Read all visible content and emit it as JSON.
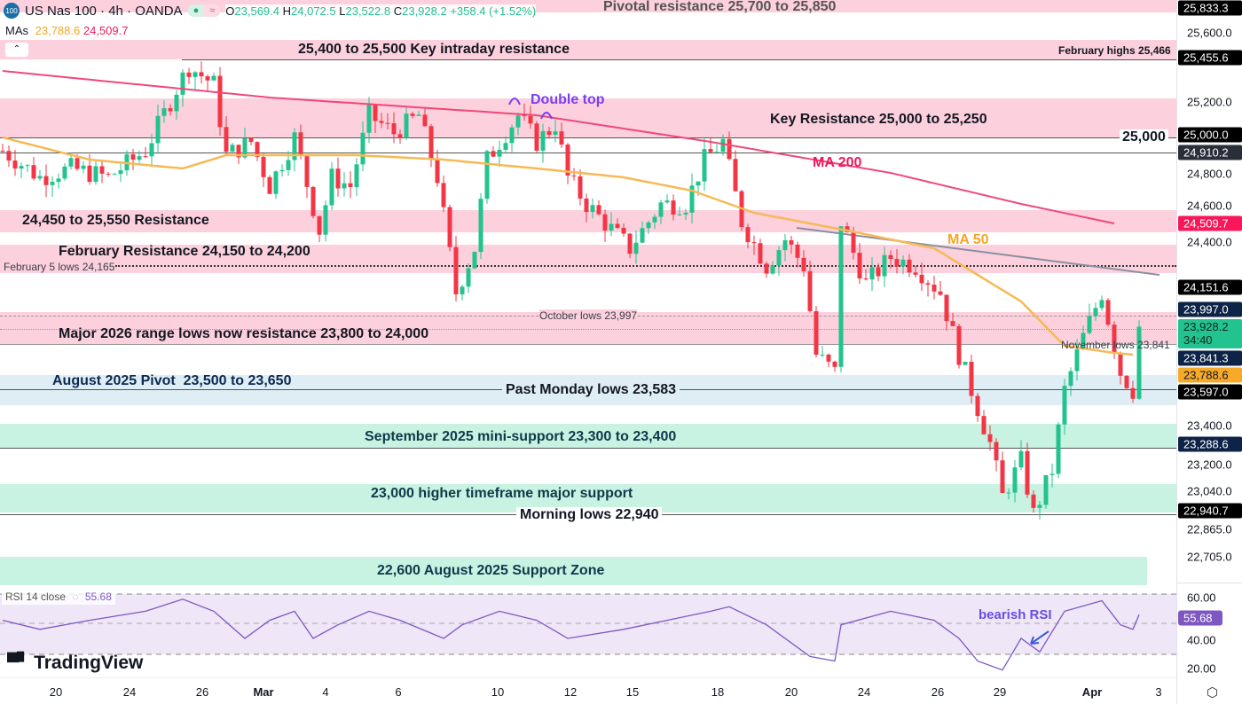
{
  "header": {
    "symbol_badge": "100",
    "title": "US Nas 100 · 4h · OANDA",
    "open_label": "O",
    "open": "23,569.4",
    "high_label": "H",
    "high": "24,072.5",
    "low_label": "L",
    "low": "23,522.8",
    "close_label": "C",
    "close": "23,928.2",
    "change": "+358.4 (+1.52%)",
    "mas_label": "MAs",
    "ma50": "23,788.6",
    "ma200": "24,509.7"
  },
  "annotations": {
    "pivotal": "Pivotal resistance 25,700 to 25,850",
    "key_intraday": "25,400 to 25,500 Key intraday resistance",
    "feb_highs": "February highs 25,466",
    "double_top": "Double top",
    "key_res": "Key Resistance 25,000 to 25,250",
    "level_25000": "25,000",
    "ma200": "MA 200",
    "res_24450": "24,450 to 25,550 Resistance",
    "ma50": "MA 50",
    "feb_res": "February Resistance 24,150 to 24,200",
    "feb5": "February 5 lows 24,165",
    "oct_lows": "October lows 23,997",
    "major2026": "Major 2026 range lows now resistance 23,800 to 24,000",
    "nov_lows": "November lows 23,841",
    "aug_pivot": "August 2025 Pivot  23,500 to 23,650",
    "past_monday": "Past Monday lows 23,583",
    "sep_support": "September 2025 mini-support 23,300 to 23,400",
    "support_23000": "23,000 higher timeframe major support",
    "morning_lows": "Morning lows 22,940",
    "aug_support": "22,600 August 2025 Support Zone",
    "bearish_rsi": "bearish RSI"
  },
  "rsi": {
    "label": "RSI 14 close",
    "value": "55.68"
  },
  "logo": "TradingView",
  "price_axis": {
    "ticks": [
      "25,600.0",
      "25,200.0",
      "24,800.0",
      "24,600.0",
      "24,400.0",
      "23,400.0",
      "23,200.0",
      "23,040.0",
      "22,865.0",
      "22,705.0"
    ],
    "badges": {
      "pivotal": "25,833.3",
      "feb_high": "25,455.6",
      "k25000": "25,000.0",
      "k24910": "24,910.2",
      "ma200": "24,509.7",
      "feb5": "24,151.6",
      "oct": "23,997.0",
      "last": "23,928.2",
      "countdown": "34:40",
      "nov": "23,841.3",
      "ma50": "23,788.6",
      "monday": "23,597.0",
      "sep": "23,288.6",
      "morning": "22,940.7"
    },
    "rsi_ticks": [
      "60.00",
      "40.00",
      "20.00"
    ]
  },
  "time_axis": [
    "20",
    "24",
    "26",
    "Mar",
    "4",
    "6",
    "10",
    "12",
    "15",
    "18",
    "20",
    "24",
    "26",
    "29",
    "Apr",
    "3"
  ],
  "colors": {
    "up": "#22c38e",
    "down": "#f23645",
    "ma50": "#f7b955",
    "ma200": "#f0487a",
    "rsi": "#7e57c2"
  },
  "chart_data": {
    "type": "candlestick",
    "title": "US Nas 100 · 4h · OANDA",
    "ylim": [
      22600,
      25900
    ],
    "close_path": [
      [
        0,
        24920
      ],
      [
        6,
        24770
      ],
      [
        11,
        24820
      ],
      [
        17,
        24770
      ],
      [
        23,
        24920
      ],
      [
        28,
        25270
      ],
      [
        30,
        25395
      ],
      [
        34,
        25295
      ],
      [
        36,
        24895
      ],
      [
        40,
        24970
      ],
      [
        43,
        24720
      ],
      [
        47,
        24995
      ],
      [
        51,
        24470
      ],
      [
        53,
        24770
      ],
      [
        56,
        24720
      ],
      [
        59,
        25120
      ],
      [
        63,
        25020
      ],
      [
        67,
        25120
      ],
      [
        70,
        24770
      ],
      [
        73,
        24120
      ],
      [
        76,
        24370
      ],
      [
        78,
        24870
      ],
      [
        83,
        25120
      ],
      [
        86,
        24970
      ],
      [
        89,
        25070
      ],
      [
        91,
        24770
      ],
      [
        94,
        24620
      ],
      [
        101,
        24370
      ],
      [
        106,
        24620
      ],
      [
        110,
        24620
      ],
      [
        113,
        24870
      ],
      [
        116,
        24970
      ],
      [
        119,
        24520
      ],
      [
        123,
        24270
      ],
      [
        126,
        24420
      ],
      [
        129,
        24270
      ],
      [
        131,
        23770
      ],
      [
        134,
        23670
      ],
      [
        135,
        24520
      ],
      [
        139,
        24170
      ],
      [
        143,
        24320
      ],
      [
        147,
        24270
      ],
      [
        151,
        24120
      ],
      [
        154,
        23770
      ],
      [
        159,
        23270
      ],
      [
        161,
        22970
      ],
      [
        164,
        23170
      ],
      [
        166,
        22870
      ],
      [
        169,
        23120
      ],
      [
        171,
        23570
      ],
      [
        174,
        23870
      ],
      [
        177,
        24120
      ],
      [
        180,
        23670
      ],
      [
        182,
        23570
      ],
      [
        183,
        23928
      ]
    ],
    "ma50": [
      [
        0,
        24995
      ],
      [
        14,
        24870
      ],
      [
        29,
        24820
      ],
      [
        36,
        24895
      ],
      [
        57,
        24895
      ],
      [
        71,
        24870
      ],
      [
        86,
        24820
      ],
      [
        100,
        24770
      ],
      [
        111,
        24695
      ],
      [
        121,
        24570
      ],
      [
        136,
        24470
      ],
      [
        150,
        24370
      ],
      [
        164,
        24070
      ],
      [
        171,
        23820
      ],
      [
        179,
        23780
      ],
      [
        182,
        23770
      ]
    ],
    "ma200": [
      [
        0,
        25370
      ],
      [
        43,
        25220
      ],
      [
        86,
        25120
      ],
      [
        114,
        24970
      ],
      [
        143,
        24795
      ],
      [
        164,
        24620
      ],
      [
        179,
        24510
      ]
    ],
    "rsi_path": [
      [
        0,
        52
      ],
      [
        6,
        46
      ],
      [
        14,
        52
      ],
      [
        23,
        58
      ],
      [
        29,
        66
      ],
      [
        34,
        58
      ],
      [
        39,
        40
      ],
      [
        43,
        52
      ],
      [
        47,
        58
      ],
      [
        50,
        40
      ],
      [
        54,
        49
      ],
      [
        59,
        58
      ],
      [
        64,
        52
      ],
      [
        71,
        40
      ],
      [
        74,
        49
      ],
      [
        80,
        58
      ],
      [
        86,
        52
      ],
      [
        91,
        40
      ],
      [
        100,
        46
      ],
      [
        107,
        52
      ],
      [
        114,
        58
      ],
      [
        117,
        61
      ],
      [
        123,
        49
      ],
      [
        130,
        28
      ],
      [
        134,
        25
      ],
      [
        135,
        49
      ],
      [
        143,
        58
      ],
      [
        150,
        52
      ],
      [
        154,
        40
      ],
      [
        157,
        25
      ],
      [
        161,
        19
      ],
      [
        164,
        40
      ],
      [
        167,
        31
      ],
      [
        171,
        58
      ],
      [
        177,
        65
      ],
      [
        180,
        49
      ],
      [
        182,
        46
      ],
      [
        183,
        55.68
      ]
    ],
    "rsi_levels": [
      70,
      50,
      30
    ]
  }
}
